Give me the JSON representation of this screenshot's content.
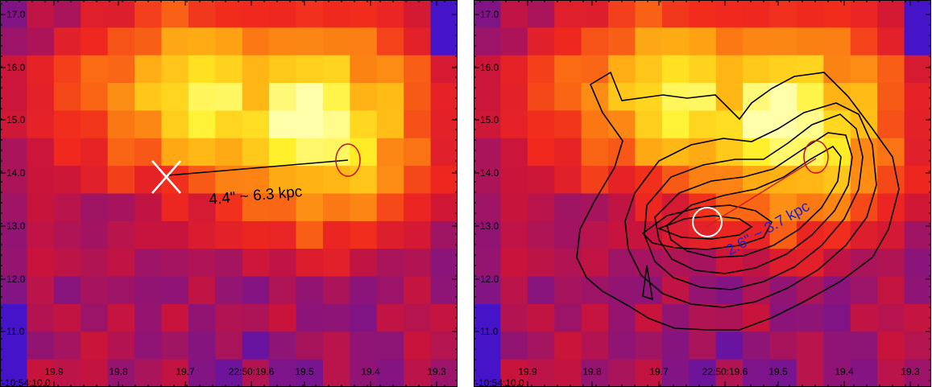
{
  "left_panel": {
    "separation_label": "4.4\" ~ 6.3 kpc"
  },
  "right_panel": {
    "separation_label": "2.6\" ~ 3.7 kpc"
  },
  "axes": {
    "dec_ticks": [
      "17.0",
      "16.0",
      "15.0",
      "14.0",
      "13.0",
      "12.0",
      "11.0"
    ],
    "ra_ticks": [
      "19.9",
      "19.8",
      "19.7",
      "22:50:19.6",
      "19.5",
      "19.4",
      "19.3"
    ],
    "corner_label": "-10:54:10.0"
  },
  "colors": {
    "marker_red": "#cc1010",
    "contour": "#000000",
    "separation_line_right": "#d02020",
    "label_right": "#2222cc"
  }
}
